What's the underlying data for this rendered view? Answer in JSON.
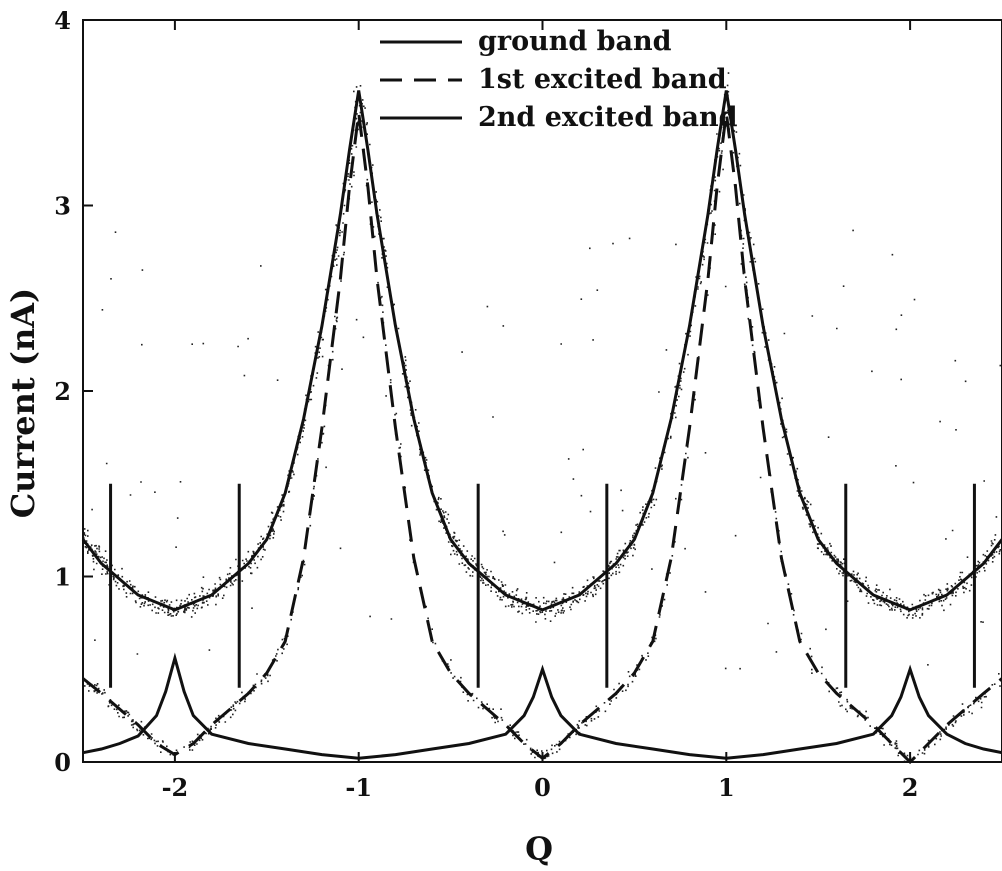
{
  "chart_data": {
    "type": "line",
    "title": "",
    "xlabel": "Q",
    "ylabel": "Current (nA)",
    "xlim": [
      -2.5,
      2.5
    ],
    "ylim": [
      0,
      4
    ],
    "xticks": [
      -2,
      -1,
      0,
      1,
      2
    ],
    "xtick_labels": [
      "-2",
      "-1",
      "0",
      "1",
      "2"
    ],
    "yticks": [
      0,
      1,
      2,
      3,
      4
    ],
    "ytick_labels": [
      "0",
      "1",
      "2",
      "3",
      "4"
    ],
    "legend_position": "top-center",
    "grid": false,
    "series": [
      {
        "name": "ground band",
        "style": "solid",
        "color": "#111111",
        "x": [
          -2.5,
          -2.4,
          -2.3,
          -2.2,
          -2.1,
          -2.05,
          -2.0,
          -1.95,
          -1.9,
          -1.8,
          -1.6,
          -1.4,
          -1.2,
          -1.0,
          -0.8,
          -0.6,
          -0.4,
          -0.2,
          -0.1,
          -0.05,
          0.0,
          0.05,
          0.1,
          0.2,
          0.4,
          0.6,
          0.8,
          1.0,
          1.2,
          1.4,
          1.6,
          1.8,
          1.9,
          1.95,
          2.0,
          2.05,
          2.1,
          2.2,
          2.3,
          2.4,
          2.5
        ],
        "y": [
          0.05,
          0.07,
          0.1,
          0.14,
          0.25,
          0.38,
          0.56,
          0.38,
          0.25,
          0.15,
          0.1,
          0.07,
          0.04,
          0.02,
          0.04,
          0.07,
          0.1,
          0.15,
          0.25,
          0.35,
          0.5,
          0.35,
          0.25,
          0.15,
          0.1,
          0.07,
          0.04,
          0.02,
          0.04,
          0.07,
          0.1,
          0.15,
          0.25,
          0.35,
          0.5,
          0.35,
          0.25,
          0.15,
          0.1,
          0.07,
          0.05
        ]
      },
      {
        "name": "1st excited band",
        "style": "dashed",
        "color": "#111111",
        "x": [
          -2.5,
          -2.4,
          -2.2,
          -2.1,
          -2.0,
          -1.9,
          -1.8,
          -1.6,
          -1.5,
          -1.4,
          -1.3,
          -1.2,
          -1.1,
          -1.05,
          -1.0,
          -0.95,
          -0.9,
          -0.8,
          -0.7,
          -0.6,
          -0.5,
          -0.4,
          -0.2,
          -0.1,
          0.0,
          0.1,
          0.2,
          0.4,
          0.5,
          0.6,
          0.7,
          0.8,
          0.9,
          0.95,
          1.0,
          1.05,
          1.1,
          1.2,
          1.3,
          1.4,
          1.5,
          1.6,
          1.8,
          1.9,
          2.0,
          2.1,
          2.2,
          2.4,
          2.5
        ],
        "y": [
          0.45,
          0.37,
          0.2,
          0.1,
          0.04,
          0.1,
          0.2,
          0.37,
          0.48,
          0.65,
          1.1,
          1.8,
          2.6,
          3.1,
          3.5,
          3.1,
          2.6,
          1.8,
          1.1,
          0.65,
          0.48,
          0.37,
          0.2,
          0.1,
          0.02,
          0.1,
          0.2,
          0.37,
          0.48,
          0.65,
          1.1,
          1.8,
          2.6,
          3.1,
          3.5,
          3.1,
          2.6,
          1.8,
          1.1,
          0.65,
          0.48,
          0.37,
          0.2,
          0.1,
          0.0,
          0.1,
          0.2,
          0.37,
          0.45
        ]
      },
      {
        "name": "2nd excited band",
        "style": "solid",
        "color": "#111111",
        "x": [
          -2.5,
          -2.4,
          -2.2,
          -2.0,
          -1.8,
          -1.6,
          -1.5,
          -1.4,
          -1.3,
          -1.2,
          -1.1,
          -1.05,
          -1.0,
          -0.95,
          -0.9,
          -0.8,
          -0.7,
          -0.6,
          -0.5,
          -0.4,
          -0.2,
          0.0,
          0.2,
          0.4,
          0.5,
          0.6,
          0.7,
          0.8,
          0.9,
          0.95,
          1.0,
          1.05,
          1.1,
          1.2,
          1.3,
          1.4,
          1.5,
          1.6,
          1.8,
          2.0,
          2.2,
          2.4,
          2.5
        ],
        "y": [
          1.2,
          1.07,
          0.9,
          0.82,
          0.9,
          1.07,
          1.2,
          1.45,
          1.85,
          2.35,
          2.95,
          3.3,
          3.62,
          3.3,
          2.95,
          2.35,
          1.85,
          1.45,
          1.2,
          1.07,
          0.9,
          0.82,
          0.9,
          1.07,
          1.2,
          1.45,
          1.85,
          2.35,
          2.95,
          3.3,
          3.62,
          3.3,
          2.95,
          2.35,
          1.85,
          1.45,
          1.2,
          1.07,
          0.9,
          0.82,
          0.9,
          1.07,
          1.2
        ]
      }
    ],
    "vertical_markers": [
      {
        "x": -2.35,
        "y_range": [
          0.4,
          1.5
        ]
      },
      {
        "x": -1.65,
        "y_range": [
          0.4,
          1.5
        ]
      },
      {
        "x": -0.35,
        "y_range": [
          0.4,
          1.5
        ]
      },
      {
        "x": 0.35,
        "y_range": [
          0.4,
          1.5
        ]
      },
      {
        "x": 1.65,
        "y_range": [
          0.4,
          1.5
        ]
      },
      {
        "x": 2.35,
        "y_range": [
          0.4,
          1.5
        ]
      }
    ],
    "scatter_note": "dense noisy measured data points following the curves"
  }
}
